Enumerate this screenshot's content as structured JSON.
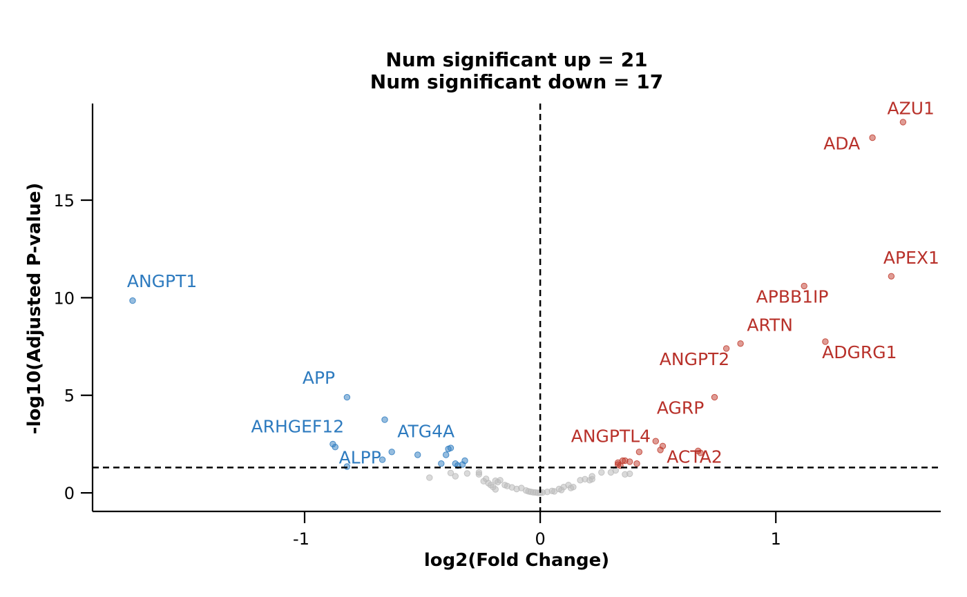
{
  "chart_data": {
    "type": "scatter",
    "title_lines": [
      "Num significant up = 21",
      "Num significant down = 17"
    ],
    "xlabel": "log2(Fold Change)",
    "ylabel": "-log10(Adjusted P-value)",
    "xlim": [
      -1.9,
      1.7
    ],
    "ylim": [
      -0.95,
      19.95
    ],
    "xticks": [
      -1,
      0,
      1
    ],
    "xtick_labels": [
      "-1",
      "0",
      "1"
    ],
    "yticks": [
      0,
      5,
      10,
      15
    ],
    "ytick_labels": [
      "0",
      "5",
      "10",
      "15"
    ],
    "fc_threshold": 0,
    "padj_threshold_line": 1.3,
    "grid": false,
    "colors": {
      "up": "#c0392b",
      "down": "#2e7bbf",
      "ns": "#bbbbbb",
      "up_label": "#b8312a",
      "down_label": "#2e7bbf"
    },
    "labels": [
      {
        "text": "AZU1",
        "x": 1.573,
        "y": 19.4,
        "group": "up"
      },
      {
        "text": "ADA",
        "x": 1.28,
        "y": 17.6,
        "group": "up"
      },
      {
        "text": "APEX1",
        "x": 1.575,
        "y": 11.75,
        "group": "up"
      },
      {
        "text": "APBB1IP",
        "x": 1.07,
        "y": 9.75,
        "group": "up"
      },
      {
        "text": "ARTN",
        "x": 0.975,
        "y": 8.3,
        "group": "up"
      },
      {
        "text": "ADGRG1",
        "x": 1.355,
        "y": 6.9,
        "group": "up"
      },
      {
        "text": "ANGPT2",
        "x": 0.655,
        "y": 6.55,
        "group": "up"
      },
      {
        "text": "AGRP",
        "x": 0.595,
        "y": 4.05,
        "group": "up"
      },
      {
        "text": "ANGPTL4",
        "x": 0.3,
        "y": 2.6,
        "group": "up"
      },
      {
        "text": "ACTA2",
        "x": 0.655,
        "y": 1.55,
        "group": "up"
      },
      {
        "text": "ANGPT1",
        "x": -1.605,
        "y": 10.55,
        "group": "down"
      },
      {
        "text": "APP",
        "x": -0.94,
        "y": 5.6,
        "group": "down"
      },
      {
        "text": "ARHGEF12",
        "x": -1.03,
        "y": 3.1,
        "group": "down"
      },
      {
        "text": "ATG4A",
        "x": -0.485,
        "y": 2.85,
        "group": "down"
      },
      {
        "text": "ALPP",
        "x": -0.765,
        "y": 1.5,
        "group": "down"
      }
    ],
    "series": [
      {
        "group": "up",
        "points": [
          [
            1.54,
            19.0
          ],
          [
            1.41,
            18.2
          ],
          [
            1.49,
            11.1
          ],
          [
            1.12,
            10.6
          ],
          [
            1.21,
            7.75
          ],
          [
            0.85,
            7.65
          ],
          [
            0.79,
            7.4
          ],
          [
            0.74,
            4.9
          ],
          [
            0.49,
            2.65
          ],
          [
            0.52,
            2.4
          ],
          [
            0.51,
            2.2
          ],
          [
            0.42,
            2.1
          ],
          [
            0.67,
            2.15
          ],
          [
            0.68,
            2.05
          ],
          [
            0.33,
            1.55
          ],
          [
            0.35,
            1.65
          ],
          [
            0.36,
            1.65
          ],
          [
            0.38,
            1.6
          ],
          [
            0.41,
            1.5
          ],
          [
            0.34,
            1.4
          ],
          [
            0.33,
            1.45
          ]
        ]
      },
      {
        "group": "down",
        "points": [
          [
            -1.73,
            9.85
          ],
          [
            -0.82,
            4.9
          ],
          [
            -0.66,
            3.75
          ],
          [
            -0.88,
            2.5
          ],
          [
            -0.87,
            2.35
          ],
          [
            -0.63,
            2.1
          ],
          [
            -0.52,
            1.95
          ],
          [
            -0.39,
            2.25
          ],
          [
            -0.38,
            2.3
          ],
          [
            -0.4,
            1.95
          ],
          [
            -0.67,
            1.7
          ],
          [
            -0.32,
            1.65
          ],
          [
            -0.36,
            1.5
          ],
          [
            -0.42,
            1.5
          ],
          [
            -0.33,
            1.45
          ],
          [
            -0.35,
            1.4
          ],
          [
            -0.82,
            1.35
          ]
        ]
      },
      {
        "group": "ns",
        "points": [
          [
            -0.47,
            0.78
          ],
          [
            -0.38,
            1.02
          ],
          [
            -0.36,
            0.85
          ],
          [
            -0.31,
            1.0
          ],
          [
            -0.26,
            0.95
          ],
          [
            -0.26,
            1.05
          ],
          [
            -0.24,
            0.6
          ],
          [
            -0.23,
            0.72
          ],
          [
            -0.22,
            0.5
          ],
          [
            -0.21,
            0.4
          ],
          [
            -0.2,
            0.3
          ],
          [
            -0.19,
            0.62
          ],
          [
            -0.18,
            0.55
          ],
          [
            -0.19,
            0.18
          ],
          [
            -0.17,
            0.65
          ],
          [
            -0.15,
            0.4
          ],
          [
            -0.14,
            0.35
          ],
          [
            -0.12,
            0.28
          ],
          [
            -0.1,
            0.2
          ],
          [
            -0.08,
            0.25
          ],
          [
            -0.06,
            0.12
          ],
          [
            -0.05,
            0.08
          ],
          [
            -0.04,
            0.05
          ],
          [
            -0.03,
            0.03
          ],
          [
            -0.02,
            0.02
          ],
          [
            -0.01,
            0.01
          ],
          [
            0.0,
            0.0
          ],
          [
            0.01,
            0.02
          ],
          [
            0.03,
            0.05
          ],
          [
            0.05,
            0.1
          ],
          [
            0.06,
            0.08
          ],
          [
            0.08,
            0.2
          ],
          [
            0.09,
            0.15
          ],
          [
            0.1,
            0.3
          ],
          [
            0.12,
            0.4
          ],
          [
            0.13,
            0.25
          ],
          [
            0.14,
            0.3
          ],
          [
            0.17,
            0.65
          ],
          [
            0.19,
            0.7
          ],
          [
            0.21,
            0.65
          ],
          [
            0.22,
            0.85
          ],
          [
            0.22,
            0.7
          ],
          [
            0.26,
            1.05
          ],
          [
            0.3,
            1.05
          ],
          [
            0.32,
            1.15
          ],
          [
            0.36,
            0.95
          ],
          [
            0.38,
            0.98
          ]
        ]
      }
    ]
  }
}
